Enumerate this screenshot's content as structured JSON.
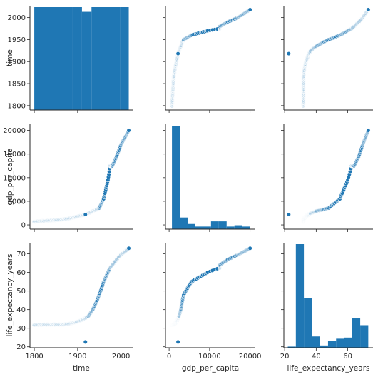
{
  "chart_data": {
    "type": "pairplot",
    "variables": [
      "time",
      "gdp_per_capita",
      "life_expectancy_years"
    ],
    "color": "#1f77b4",
    "ticks": {
      "time": [
        "1800",
        "1850",
        "1900",
        "1950",
        "2000"
      ],
      "gdp_per_capita": [
        "0",
        "5000",
        "10000",
        "15000",
        "20000"
      ],
      "life_expectancy_years": [
        "20",
        "30",
        "40",
        "50",
        "60",
        "70"
      ]
    },
    "x_ticks": {
      "time": [
        "1800",
        "1900",
        "2000"
      ],
      "gdp_per_capita": [
        "0",
        "10000",
        "20000"
      ],
      "life_expectancy_years": [
        "20",
        "40",
        "60"
      ]
    },
    "ranges": {
      "time": [
        1790,
        2027
      ],
      "gdp_per_capita": [
        -900,
        21300
      ],
      "life_expectancy_years": [
        19.5,
        76
      ]
    },
    "histograms": {
      "time": {
        "edges": [
          1800,
          1822,
          1844,
          1866,
          1888,
          1910,
          1932,
          1954,
          1976,
          1998,
          2018
        ],
        "counts": [
          22,
          22,
          22,
          22,
          22,
          21,
          22,
          22,
          22,
          22
        ]
      },
      "gdp_per_capita": {
        "edges": [
          700,
          2630,
          4560,
          6490,
          8420,
          10350,
          12280,
          14210,
          16140,
          18070,
          20000
        ],
        "counts": [
          80,
          9,
          4,
          2,
          2,
          6,
          6,
          2,
          3,
          2
        ]
      },
      "life_expectancy_years": {
        "edges": [
          22,
          27.1,
          32.2,
          37.3,
          42.4,
          47.5,
          52.6,
          57.7,
          62.8,
          67.9,
          73
        ],
        "counts": [
          1,
          92,
          44,
          10,
          2,
          6,
          8,
          9,
          26,
          20
        ]
      }
    },
    "anomaly": {
      "time": 1918,
      "gdp_per_capita": 2200,
      "life_expectancy_years": 22.6
    },
    "series": [
      {
        "time": 1800,
        "gdp_per_capita": 700,
        "life_expectancy_years": 31.8
      },
      {
        "time": 1820,
        "gdp_per_capita": 820,
        "life_expectancy_years": 31.9
      },
      {
        "time": 1840,
        "gdp_per_capita": 960,
        "life_expectancy_years": 32.0
      },
      {
        "time": 1860,
        "gdp_per_capita": 1100,
        "life_expectancy_years": 31.9
      },
      {
        "time": 1880,
        "gdp_per_capita": 1350,
        "life_expectancy_years": 32.3
      },
      {
        "time": 1900,
        "gdp_per_capita": 1800,
        "life_expectancy_years": 33.5
      },
      {
        "time": 1915,
        "gdp_per_capita": 2150,
        "life_expectancy_years": 35.0
      },
      {
        "time": 1925,
        "gdp_per_capita": 2450,
        "life_expectancy_years": 36.5
      },
      {
        "time": 1935,
        "gdp_per_capita": 2900,
        "life_expectancy_years": 40.0
      },
      {
        "time": 1945,
        "gdp_per_capita": 3300,
        "life_expectancy_years": 45.0
      },
      {
        "time": 1950,
        "gdp_per_capita": 3600,
        "life_expectancy_years": 48.0
      },
      {
        "time": 1960,
        "gdp_per_capita": 5500,
        "life_expectancy_years": 55.0
      },
      {
        "time": 1970,
        "gdp_per_capita": 9500,
        "life_expectancy_years": 60.0
      },
      {
        "time": 1975,
        "gdp_per_capita": 12500,
        "life_expectancy_years": 62.5
      },
      {
        "time": 1980,
        "gdp_per_capita": 12500,
        "life_expectancy_years": 64.0
      },
      {
        "time": 1990,
        "gdp_per_capita": 14500,
        "life_expectancy_years": 67.0
      },
      {
        "time": 2000,
        "gdp_per_capita": 17000,
        "life_expectancy_years": 69.5
      },
      {
        "time": 2018,
        "gdp_per_capita": 20000,
        "life_expectancy_years": 73.0
      }
    ]
  }
}
